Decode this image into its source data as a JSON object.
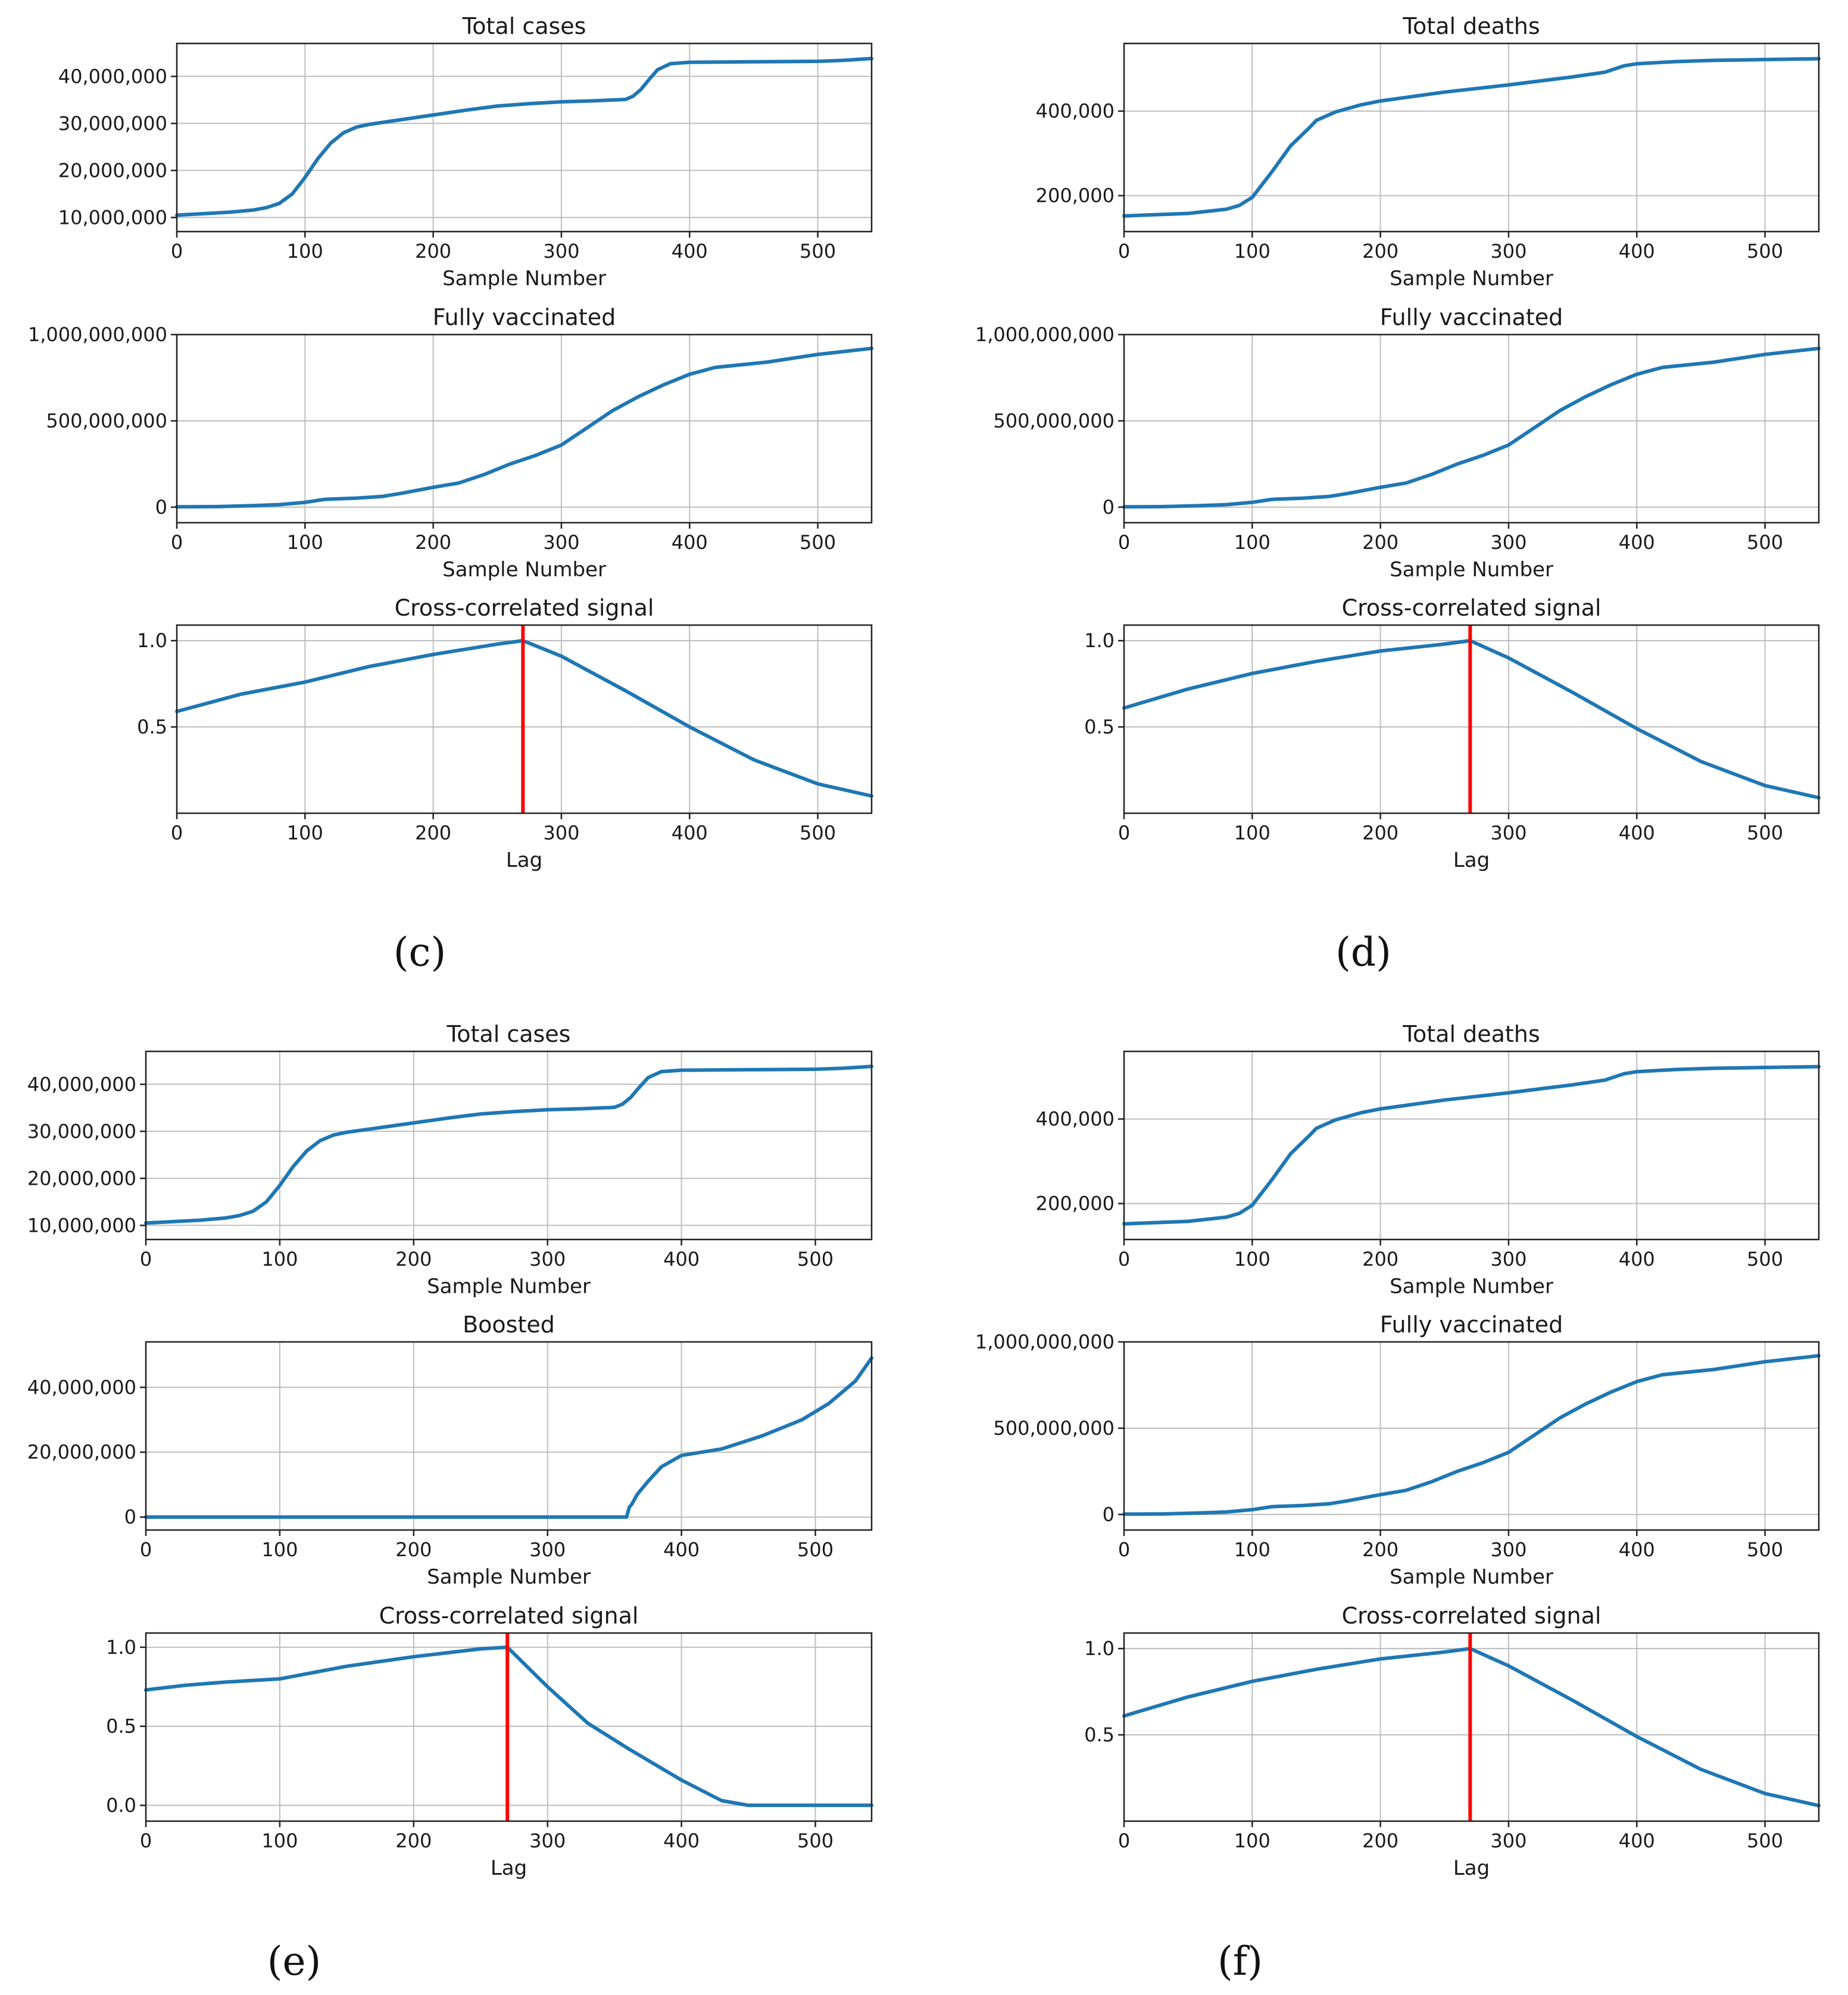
{
  "colors": {
    "line": "#1f77b4",
    "marker": "#ff0000",
    "grid": "#bdbdbd",
    "axis": "#222222"
  },
  "chart_data": [
    {
      "id": "c1",
      "type": "line",
      "title": "Total cases",
      "xlabel": "Sample Number",
      "xlim": [
        0,
        542
      ],
      "ylim": [
        7000000,
        47000000
      ],
      "xticks": [
        0,
        100,
        200,
        300,
        400,
        500
      ],
      "yticks": [
        10000000,
        20000000,
        30000000,
        40000000
      ],
      "ytick_labels": [
        "10,000,000",
        "20,000,000",
        "30,000,000",
        "40,000,000"
      ],
      "series": [
        {
          "name": "Total cases",
          "x": [
            0,
            20,
            40,
            60,
            70,
            80,
            90,
            100,
            110,
            120,
            130,
            140,
            150,
            175,
            200,
            225,
            250,
            275,
            300,
            325,
            350,
            356,
            362,
            368,
            375,
            385,
            400,
            450,
            500,
            520,
            542
          ],
          "y": [
            10500000,
            10800000,
            11100000,
            11600000,
            12100000,
            13000000,
            15000000,
            18500000,
            22500000,
            25800000,
            28000000,
            29200000,
            29800000,
            30800000,
            31800000,
            32800000,
            33700000,
            34200000,
            34600000,
            34800000,
            35100000,
            35800000,
            37200000,
            39200000,
            41400000,
            42700000,
            43000000,
            43100000,
            43200000,
            43400000,
            43800000
          ]
        }
      ]
    },
    {
      "id": "c2",
      "type": "line",
      "title": "Fully vaccinated",
      "xlabel": "Sample Number",
      "xlim": [
        0,
        542
      ],
      "ylim": [
        -90000000,
        1000000000
      ],
      "xticks": [
        0,
        100,
        200,
        300,
        400,
        500
      ],
      "yticks": [
        0,
        500000000,
        1000000000
      ],
      "ytick_labels": [
        "0",
        "500,000,000",
        "1,000,000,000"
      ],
      "series": [
        {
          "name": "Fully vaccinated",
          "x": [
            0,
            30,
            60,
            80,
            100,
            115,
            120,
            140,
            160,
            175,
            200,
            220,
            240,
            260,
            280,
            290,
            300,
            320,
            340,
            360,
            380,
            400,
            420,
            460,
            500,
            542
          ],
          "y": [
            2000000,
            3000000,
            9000000,
            15000000,
            28000000,
            45000000,
            47000000,
            52000000,
            62000000,
            80000000,
            115000000,
            140000000,
            190000000,
            250000000,
            300000000,
            330000000,
            360000000,
            460000000,
            560000000,
            640000000,
            710000000,
            770000000,
            810000000,
            840000000,
            885000000,
            920000000
          ]
        }
      ]
    },
    {
      "id": "c3",
      "type": "line",
      "title": "Cross-correlated signal",
      "xlabel": "Lag",
      "xlim": [
        0,
        542
      ],
      "ylim": [
        0,
        1.09
      ],
      "xticks": [
        0,
        100,
        200,
        300,
        400,
        500
      ],
      "yticks": [
        0.5,
        1.0
      ],
      "ytick_labels": [
        "0.5",
        "1.0"
      ],
      "vline": 270,
      "series": [
        {
          "name": "Cross-correlation",
          "x": [
            0,
            50,
            100,
            150,
            200,
            250,
            270,
            300,
            350,
            400,
            450,
            500,
            542
          ],
          "y": [
            0.59,
            0.69,
            0.76,
            0.85,
            0.92,
            0.98,
            1.0,
            0.91,
            0.71,
            0.5,
            0.31,
            0.17,
            0.1
          ]
        }
      ]
    },
    {
      "id": "d1",
      "type": "line",
      "title": "Total deaths",
      "xlabel": "Sample Number",
      "xlim": [
        0,
        542
      ],
      "ylim": [
        115000,
        560000
      ],
      "xticks": [
        0,
        100,
        200,
        300,
        400,
        500
      ],
      "yticks": [
        200000,
        400000
      ],
      "ytick_labels": [
        "200,000",
        "400,000"
      ],
      "series": [
        {
          "name": "Total deaths",
          "x": [
            0,
            50,
            80,
            90,
            100,
            115,
            130,
            145,
            150,
            165,
            185,
            200,
            250,
            300,
            350,
            375,
            390,
            400,
            430,
            460,
            500,
            542
          ],
          "y": [
            152000,
            158000,
            168000,
            177000,
            196000,
            255000,
            318000,
            362000,
            378000,
            398000,
            415000,
            424000,
            445000,
            462000,
            481000,
            492000,
            507000,
            512000,
            517000,
            520000,
            522000,
            524000
          ]
        }
      ]
    },
    {
      "id": "d2",
      "type": "line",
      "title": "Fully vaccinated",
      "xlabel": "Sample Number",
      "xlim": [
        0,
        542
      ],
      "ylim": [
        -90000000,
        1000000000
      ],
      "xticks": [
        0,
        100,
        200,
        300,
        400,
        500
      ],
      "yticks": [
        0,
        500000000,
        1000000000
      ],
      "ytick_labels": [
        "0",
        "500,000,000",
        "1,000,000,000"
      ],
      "series": [
        {
          "name": "Fully vaccinated",
          "x": [
            0,
            30,
            60,
            80,
            100,
            115,
            120,
            140,
            160,
            175,
            200,
            220,
            240,
            260,
            280,
            290,
            300,
            320,
            340,
            360,
            380,
            400,
            420,
            460,
            500,
            542
          ],
          "y": [
            2000000,
            3000000,
            9000000,
            15000000,
            28000000,
            45000000,
            47000000,
            52000000,
            62000000,
            80000000,
            115000000,
            140000000,
            190000000,
            250000000,
            300000000,
            330000000,
            360000000,
            460000000,
            560000000,
            640000000,
            710000000,
            770000000,
            810000000,
            840000000,
            885000000,
            920000000
          ]
        }
      ]
    },
    {
      "id": "d3",
      "type": "line",
      "title": "Cross-correlated signal",
      "xlabel": "Lag",
      "xlim": [
        0,
        542
      ],
      "ylim": [
        0,
        1.09
      ],
      "xticks": [
        0,
        100,
        200,
        300,
        400,
        500
      ],
      "yticks": [
        0.5,
        1.0
      ],
      "ytick_labels": [
        "0.5",
        "1.0"
      ],
      "vline": 270,
      "series": [
        {
          "name": "Cross-correlation",
          "x": [
            0,
            50,
            100,
            150,
            200,
            250,
            270,
            300,
            350,
            400,
            450,
            500,
            542
          ],
          "y": [
            0.61,
            0.72,
            0.81,
            0.88,
            0.94,
            0.98,
            1.0,
            0.9,
            0.7,
            0.49,
            0.3,
            0.16,
            0.09
          ]
        }
      ]
    },
    {
      "id": "e1",
      "type": "line",
      "title": "Total cases",
      "xlabel": "Sample Number",
      "xlim": [
        0,
        542
      ],
      "ylim": [
        7000000,
        47000000
      ],
      "xticks": [
        0,
        100,
        200,
        300,
        400,
        500
      ],
      "yticks": [
        10000000,
        20000000,
        30000000,
        40000000
      ],
      "ytick_labels": [
        "10,000,000",
        "20,000,000",
        "30,000,000",
        "40,000,000"
      ],
      "series": [
        {
          "name": "Total cases",
          "x": [
            0,
            20,
            40,
            60,
            70,
            80,
            90,
            100,
            110,
            120,
            130,
            140,
            150,
            175,
            200,
            225,
            250,
            275,
            300,
            325,
            350,
            356,
            362,
            368,
            375,
            385,
            400,
            450,
            500,
            520,
            542
          ],
          "y": [
            10500000,
            10800000,
            11100000,
            11600000,
            12100000,
            13000000,
            15000000,
            18500000,
            22500000,
            25800000,
            28000000,
            29200000,
            29800000,
            30800000,
            31800000,
            32800000,
            33700000,
            34200000,
            34600000,
            34800000,
            35100000,
            35800000,
            37200000,
            39200000,
            41400000,
            42700000,
            43000000,
            43100000,
            43200000,
            43400000,
            43800000
          ]
        }
      ]
    },
    {
      "id": "e2",
      "type": "line",
      "title": "Boosted",
      "xlabel": "Sample Number",
      "xlim": [
        0,
        542
      ],
      "ylim": [
        -4000000,
        54000000
      ],
      "xticks": [
        0,
        100,
        200,
        300,
        400,
        500
      ],
      "yticks": [
        0,
        20000000,
        40000000
      ],
      "ytick_labels": [
        "0",
        "20,000,000",
        "40,000,000"
      ],
      "series": [
        {
          "name": "Boosted",
          "x": [
            0,
            100,
            200,
            300,
            359,
            361,
            363,
            367,
            375,
            385,
            400,
            430,
            460,
            490,
            510,
            530,
            542
          ],
          "y": [
            0,
            0,
            0,
            0,
            0,
            3000000,
            4000000,
            7000000,
            11000000,
            15500000,
            19000000,
            21000000,
            25000000,
            30000000,
            35000000,
            42000000,
            49000000
          ]
        }
      ]
    },
    {
      "id": "e3",
      "type": "line",
      "title": "Cross-correlated signal",
      "xlabel": "Lag",
      "xlim": [
        0,
        542
      ],
      "ylim": [
        -0.1,
        1.09
      ],
      "xticks": [
        0,
        100,
        200,
        300,
        400,
        500
      ],
      "yticks": [
        0.0,
        0.5,
        1.0
      ],
      "ytick_labels": [
        "0.0",
        "0.5",
        "1.0"
      ],
      "vline": 270,
      "series": [
        {
          "name": "Cross-correlation",
          "x": [
            0,
            30,
            60,
            100,
            150,
            200,
            250,
            270,
            300,
            330,
            360,
            400,
            430,
            450,
            470,
            500,
            542
          ],
          "y": [
            0.73,
            0.76,
            0.78,
            0.8,
            0.88,
            0.94,
            0.99,
            1.0,
            0.75,
            0.52,
            0.36,
            0.16,
            0.03,
            0.0,
            0.0,
            0.0,
            0.0
          ]
        }
      ]
    },
    {
      "id": "f1",
      "type": "line",
      "title": "Total deaths",
      "xlabel": "Sample Number",
      "xlim": [
        0,
        542
      ],
      "ylim": [
        115000,
        560000
      ],
      "xticks": [
        0,
        100,
        200,
        300,
        400,
        500
      ],
      "yticks": [
        200000,
        400000
      ],
      "ytick_labels": [
        "200,000",
        "400,000"
      ],
      "series": [
        {
          "name": "Total deaths",
          "x": [
            0,
            50,
            80,
            90,
            100,
            115,
            130,
            145,
            150,
            165,
            185,
            200,
            250,
            300,
            350,
            375,
            390,
            400,
            430,
            460,
            500,
            542
          ],
          "y": [
            152000,
            158000,
            168000,
            177000,
            196000,
            255000,
            318000,
            362000,
            378000,
            398000,
            415000,
            424000,
            445000,
            462000,
            481000,
            492000,
            507000,
            512000,
            517000,
            520000,
            522000,
            524000
          ]
        }
      ]
    },
    {
      "id": "f2",
      "type": "line",
      "title": "Fully vaccinated",
      "xlabel": "Sample Number",
      "xlim": [
        0,
        542
      ],
      "ylim": [
        -90000000,
        1000000000
      ],
      "xticks": [
        0,
        100,
        200,
        300,
        400,
        500
      ],
      "yticks": [
        0,
        500000000,
        1000000000
      ],
      "ytick_labels": [
        "0",
        "500,000,000",
        "1,000,000,000"
      ],
      "series": [
        {
          "name": "Fully vaccinated",
          "x": [
            0,
            30,
            60,
            80,
            100,
            115,
            120,
            140,
            160,
            175,
            200,
            220,
            240,
            260,
            280,
            290,
            300,
            320,
            340,
            360,
            380,
            400,
            420,
            460,
            500,
            542
          ],
          "y": [
            2000000,
            3000000,
            9000000,
            15000000,
            28000000,
            45000000,
            47000000,
            52000000,
            62000000,
            80000000,
            115000000,
            140000000,
            190000000,
            250000000,
            300000000,
            330000000,
            360000000,
            460000000,
            560000000,
            640000000,
            710000000,
            770000000,
            810000000,
            840000000,
            885000000,
            920000000
          ]
        }
      ]
    },
    {
      "id": "f3",
      "type": "line",
      "title": "Cross-correlated signal",
      "xlabel": "Lag",
      "xlim": [
        0,
        542
      ],
      "ylim": [
        0,
        1.09
      ],
      "xticks": [
        0,
        100,
        200,
        300,
        400,
        500
      ],
      "yticks": [
        0.5,
        1.0
      ],
      "ytick_labels": [
        "0.5",
        "1.0"
      ],
      "vline": 270,
      "series": [
        {
          "name": "Cross-correlation",
          "x": [
            0,
            50,
            100,
            150,
            200,
            250,
            270,
            300,
            350,
            400,
            450,
            500,
            542
          ],
          "y": [
            0.61,
            0.72,
            0.81,
            0.88,
            0.94,
            0.98,
            1.0,
            0.9,
            0.7,
            0.49,
            0.3,
            0.16,
            0.09
          ]
        }
      ]
    }
  ],
  "panel_labels": {
    "c": "(c)",
    "d": "(d)",
    "e": "(e)",
    "f": "(f)"
  }
}
